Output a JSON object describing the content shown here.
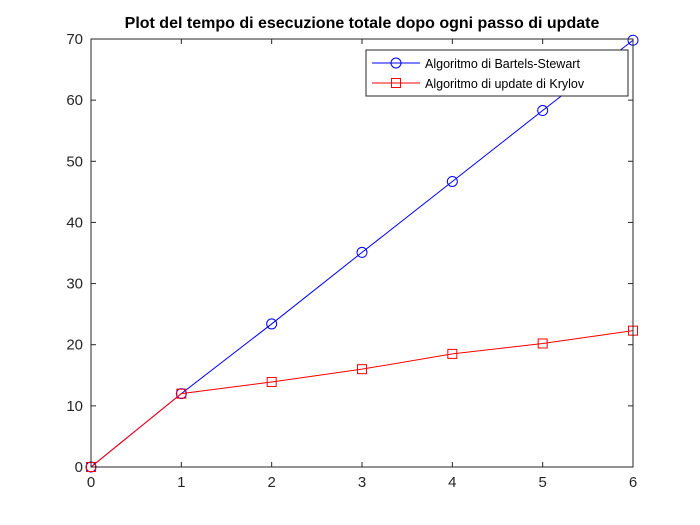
{
  "chart_data": {
    "type": "line",
    "title": "Plot del tempo di esecuzione totale dopo ogni passo di update",
    "xlabel": "",
    "ylabel": "",
    "xlim": [
      0,
      6
    ],
    "ylim": [
      0,
      70
    ],
    "x_ticks": [
      0,
      1,
      2,
      3,
      4,
      5,
      6
    ],
    "y_ticks": [
      0,
      10,
      20,
      30,
      40,
      50,
      60,
      70
    ],
    "grid": false,
    "legend_position": "top-right",
    "x": [
      0,
      1,
      2,
      3,
      4,
      5,
      6
    ],
    "series": [
      {
        "name": "Algoritmo di Bartels-Stewart",
        "values": [
          0,
          12.0,
          23.4,
          35.1,
          46.7,
          58.3,
          69.8
        ],
        "color": "#0000ff",
        "marker": "circle"
      },
      {
        "name": "Algoritmo di update di Krylov",
        "values": [
          0,
          12.0,
          13.9,
          16.0,
          18.5,
          20.2,
          22.3
        ],
        "color": "#ff0000",
        "marker": "square"
      }
    ]
  }
}
